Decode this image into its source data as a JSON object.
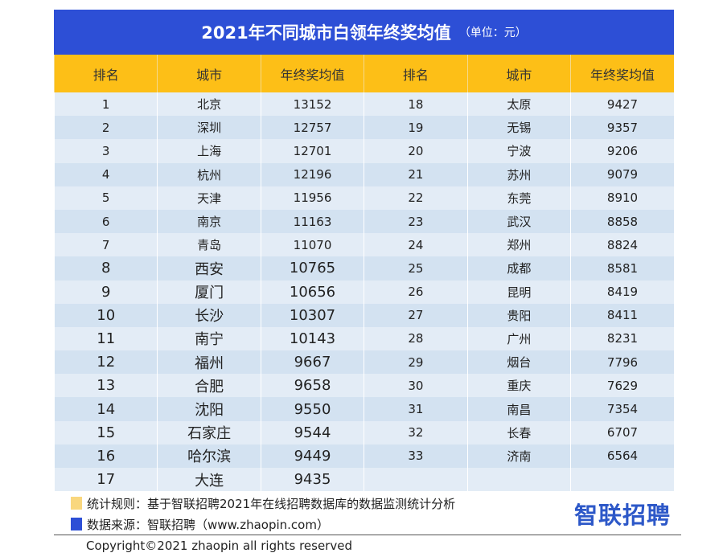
{
  "title": "2021年不同城市白领年终奖均值",
  "unit": "（单位：元）",
  "headers": [
    "排名",
    "城市",
    "年终奖均值",
    "排名",
    "城市",
    "年终奖均值"
  ],
  "rows": [
    [
      "1",
      "北京",
      "13152",
      "18",
      "太原",
      "9427"
    ],
    [
      "2",
      "深圳",
      "12757",
      "19",
      "无锡",
      "9357"
    ],
    [
      "3",
      "上海",
      "12701",
      "20",
      "宁波",
      "9206"
    ],
    [
      "4",
      "杭州",
      "12196",
      "21",
      "苏州",
      "9079"
    ],
    [
      "5",
      "天津",
      "11956",
      "22",
      "东莞",
      "8910"
    ],
    [
      "6",
      "南京",
      "11163",
      "23",
      "武汉",
      "8858"
    ],
    [
      "7",
      "青岛",
      "11070",
      "24",
      "郑州",
      "8824"
    ],
    [
      "8",
      "西安",
      "10765",
      "25",
      "成都",
      "8581"
    ],
    [
      "9",
      "厦门",
      "10656",
      "26",
      "昆明",
      "8419"
    ],
    [
      "10",
      "长沙",
      "10307",
      "27",
      "贵阳",
      "8411"
    ],
    [
      "11",
      "南宁",
      "10143",
      "28",
      "广州",
      "8231"
    ],
    [
      "12",
      "福州",
      "9667",
      "29",
      "烟台",
      "7796"
    ],
    [
      "13",
      "合肥",
      "9658",
      "30",
      "重庆",
      "7629"
    ],
    [
      "14",
      "沈阳",
      "9550",
      "31",
      "南昌",
      "7354"
    ],
    [
      "15",
      "石家庄",
      "9544",
      "32",
      "长春",
      "6707"
    ],
    [
      "16",
      "哈尔滨",
      "9449",
      "33",
      "济南",
      "6564"
    ],
    [
      "17",
      "大连",
      "9435",
      "",
      "",
      ""
    ]
  ],
  "notes": {
    "rule": "统计规则：基于智联招聘2021年在线招聘数据库的数据监测统计分析",
    "source": "数据来源：智联招聘（www.zhaopin.com）",
    "rule_color": "#f9d77e",
    "source_color": "#2d4fd6"
  },
  "logo": "智联招聘",
  "copyright": "Copyright©2021 zhaopin all rights reserved"
}
